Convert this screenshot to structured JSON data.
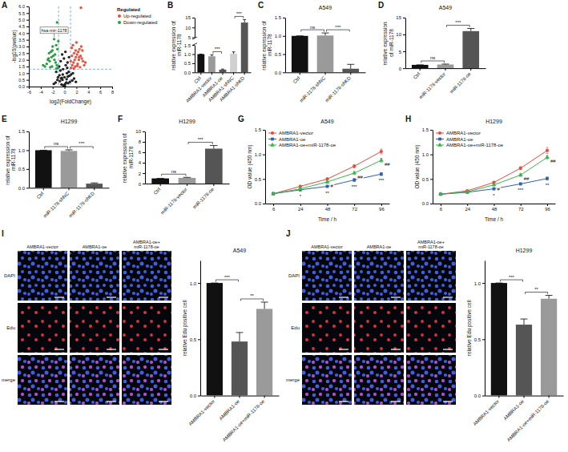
{
  "chart_data": [
    {
      "panel": "A",
      "type": "scatter",
      "xlabel": "log2(FoldChange)",
      "ylabel": "-log10(pvalue)",
      "xlim": [
        -6,
        8
      ],
      "xticks": [
        -6,
        -4,
        -2,
        0,
        2,
        4,
        6,
        8
      ],
      "ylim": [
        0,
        6
      ],
      "yticks": [
        {
          "value": 0,
          "label": "0.0"
        },
        {
          "value": 0.5,
          "label": "0.5"
        },
        {
          "value": 1,
          "label": "1.0"
        },
        {
          "value": 1.5,
          "label": "1.5"
        },
        {
          "value": 2,
          "label": "2.0"
        },
        {
          "value": 2.5,
          "label": "2.5"
        },
        {
          "value": 3,
          "label": "3.0"
        },
        {
          "value": 3.5,
          "label": "3.5"
        },
        {
          "value": 4,
          "label": "4.0"
        },
        {
          "value": 4.5,
          "label": "4.5"
        },
        {
          "value": 5,
          "label": "5.0"
        },
        {
          "value": 5.5,
          "label": "5.5"
        },
        {
          "value": 6,
          "label": "6.0"
        }
      ],
      "marker": "circle",
      "legend": "right",
      "legend_title": "Regulated",
      "thresholds": {
        "x": [
          -1,
          1
        ],
        "y": 1.3
      },
      "annotations": [
        {
          "text": "hsa-mir-1178",
          "x": -1.75,
          "y": 3.55
        }
      ],
      "series": [
        {
          "name": null,
          "color": "#222222",
          "x": [
            -0.2,
            0.1,
            0.3,
            -0.5,
            0.6,
            -0.8,
            0.9,
            -1.2,
            1.3,
            -1.5,
            1.6,
            -1.8,
            1.9,
            0.0,
            -0.3,
            0.4,
            -0.7,
            0.8,
            -0.9,
            0.5,
            -0.1,
            0.2,
            -0.4,
            0.7,
            -0.6,
            1.1,
            -1.1,
            1.4,
            -1.4,
            0.15,
            -0.25,
            0.35,
            -0.45,
            0.55,
            -0.65,
            0.05,
            0.45,
            -0.85,
            0.75,
            -0.35
          ],
          "values": [
            0.1,
            0.2,
            0.3,
            0.15,
            0.25,
            0.4,
            0.35,
            0.5,
            0.45,
            0.3,
            0.6,
            0.2,
            0.35,
            0.7,
            0.9,
            1.0,
            1.2,
            0.8,
            1.5,
            1.8,
            2.1,
            1.6,
            2.4,
            1.1,
            0.6,
            0.9,
            0.7,
            1.0,
            1.1,
            2.6,
            1.3,
            0.55,
            0.65,
            0.75,
            1.9,
            0.05,
            1.4,
            0.85,
            2.2,
            0.5
          ]
        },
        {
          "name": "Up-regulated",
          "color": "#e8543f",
          "x": [
            1.1,
            1.3,
            1.5,
            1.7,
            1.9,
            2.1,
            2.3,
            2.5,
            2.7,
            2.9,
            3.1,
            3.3,
            1.2,
            1.4,
            1.6,
            1.8,
            2.0,
            2.2,
            2.4,
            2.6,
            2.8,
            3.0,
            1.05,
            1.25,
            1.55,
            1.85,
            2.15,
            2.45,
            3.5,
            2.75
          ],
          "values": [
            1.4,
            1.6,
            1.8,
            2.0,
            2.2,
            2.4,
            2.6,
            2.8,
            2.3,
            2.1,
            1.9,
            1.6,
            2.9,
            3.1,
            2.5,
            1.5,
            3.3,
            1.7,
            2.0,
            1.45,
            3.0,
            2.7,
            1.9,
            2.3,
            1.35,
            2.7,
            1.55,
            2.2,
            1.8,
            5.9
          ]
        },
        {
          "name": "Down-regulated",
          "color": "#2e9e44",
          "x": [
            -1.1,
            -1.3,
            -1.5,
            -1.7,
            -1.9,
            -2.1,
            -2.3,
            -2.5,
            -2.7,
            -3.0,
            -3.3,
            -1.2,
            -1.4,
            -1.6,
            -1.75,
            -2.0,
            -2.2,
            -2.4,
            -2.6,
            -1.05,
            -1.25,
            -2.8,
            -3.6,
            -1.35,
            -2.05
          ],
          "values": [
            1.4,
            1.6,
            1.8,
            2.0,
            2.3,
            1.5,
            2.6,
            1.9,
            2.1,
            1.7,
            1.5,
            2.8,
            3.1,
            2.4,
            3.55,
            3.0,
            2.2,
            1.45,
            2.5,
            3.4,
            4.8,
            2.0,
            1.6,
            1.35,
            2.7
          ]
        }
      ]
    },
    {
      "panel": "B",
      "type": "bar",
      "ylabel": "relative expression of miR-1178",
      "categories": [
        "Ctrl",
        "AMBRA1-vector",
        "AMBRA1-oe",
        "AMBRA1-shNC",
        "AMBRA1-shKD"
      ],
      "values": [
        1,
        0.88,
        0.15,
        1.02,
        12.5
      ],
      "errors": [
        0,
        0.08,
        0.03,
        0.1,
        1.5
      ],
      "colors": [
        "#111111",
        "#9a9a9a",
        "#555555",
        "#d0d0d0",
        "#555555"
      ],
      "ylim": [
        0,
        15
      ],
      "ybreak": [
        1.5,
        5
      ],
      "yticks": [
        {
          "value": 0,
          "label": "0.0"
        },
        {
          "value": 0.5,
          "label": "0.5"
        },
        {
          "value": 1,
          "label": "1.0"
        },
        {
          "value": 1.5,
          "label": "1.5"
        },
        5,
        10,
        15
      ],
      "comparisons": [
        {
          "pair": [
            "AMBRA1-vector",
            "AMBRA1-oe"
          ],
          "label": "***"
        },
        {
          "pair": [
            "AMBRA1-shNC",
            "AMBRA1-shKD"
          ],
          "label": "***"
        }
      ]
    },
    {
      "panel": "C",
      "type": "bar",
      "title": "A549",
      "ylabel": "relative expression of miR-1178",
      "categories": [
        "Ctrl",
        "miR-1178-shNC",
        "miR-1178-shKD"
      ],
      "values": [
        1,
        1.01,
        0.1
      ],
      "errors": [
        0,
        0.07,
        0.12
      ],
      "colors": [
        "#111111",
        "#9a9a9a",
        "#555555"
      ],
      "ylim": [
        0,
        1.5
      ],
      "yticks": [
        {
          "value": 0,
          "label": "0.0"
        },
        {
          "value": 0.5,
          "label": "0.5"
        },
        {
          "value": 1,
          "label": "1.0"
        },
        {
          "value": 1.5,
          "label": "1.5"
        }
      ],
      "comparisons": [
        {
          "pair": [
            "Ctrl",
            "miR-1178-shNC"
          ],
          "label": "ns"
        },
        {
          "pair": [
            "miR-1178-shNC",
            "miR-1178-shKD"
          ],
          "label": "***"
        }
      ]
    },
    {
      "panel": "D",
      "type": "bar",
      "title": "A549",
      "ylabel": "relative expression of miR-1178",
      "categories": [
        "Ctrl",
        "miR-1178-vector",
        "miR-1178-oe"
      ],
      "values": [
        1,
        1.1,
        11
      ],
      "errors": [
        0,
        0.12,
        0.8
      ],
      "colors": [
        "#111111",
        "#9a9a9a",
        "#555555"
      ],
      "ylim": [
        0,
        15
      ],
      "yticks": [
        0,
        5,
        10,
        15
      ],
      "comparisons": [
        {
          "pair": [
            "Ctrl",
            "miR-1178-vector"
          ],
          "label": "ns"
        },
        {
          "pair": [
            "miR-1178-vector",
            "miR-1178-oe"
          ],
          "label": "***"
        }
      ]
    },
    {
      "panel": "E",
      "type": "bar",
      "title": "H1299",
      "ylabel": "relative expression of miR-1178",
      "categories": [
        "Ctrl",
        "miR-1178-shNC",
        "miR-1178-shKD"
      ],
      "values": [
        1,
        0.98,
        0.11
      ],
      "errors": [
        0,
        0.03,
        0.02
      ],
      "colors": [
        "#111111",
        "#9a9a9a",
        "#555555"
      ],
      "ylim": [
        0,
        1.5
      ],
      "yticks": [
        {
          "value": 0,
          "label": "0.0"
        },
        {
          "value": 0.5,
          "label": "0.5"
        },
        {
          "value": 1,
          "label": "1.0"
        },
        {
          "value": 1.5,
          "label": "1.5"
        }
      ],
      "comparisons": [
        {
          "pair": [
            "Ctrl",
            "miR-1178-shNC"
          ],
          "label": "ns"
        },
        {
          "pair": [
            "miR-1178-shNC",
            "miR-1178-shKD"
          ],
          "label": "***"
        }
      ]
    },
    {
      "panel": "F",
      "type": "bar",
      "title": "H1299",
      "ylabel": "relative expression of miR-1178",
      "categories": [
        "Ctrl",
        "miR-1178-vector",
        "miR-1178-oe"
      ],
      "values": [
        1,
        1.1,
        6.7
      ],
      "errors": [
        0,
        0.1,
        0.6
      ],
      "colors": [
        "#111111",
        "#9a9a9a",
        "#555555"
      ],
      "ylim": [
        0,
        10
      ],
      "yticks": [
        0,
        2,
        4,
        6,
        8,
        10
      ],
      "comparisons": [
        {
          "pair": [
            "Ctrl",
            "miR-1178-vector"
          ],
          "label": "ns"
        },
        {
          "pair": [
            "miR-1178-vector",
            "miR-1178-oe"
          ],
          "label": "***"
        }
      ]
    },
    {
      "panel": "G",
      "type": "line",
      "title": "A549",
      "xlabel": "Time / h",
      "ylabel": "OD value (450 nm)",
      "categories": [
        "6",
        "24",
        "48",
        "72",
        "96"
      ],
      "ylim": [
        0,
        1.5
      ],
      "yticks": [
        {
          "value": 0,
          "label": "0.0"
        },
        {
          "value": 0.5,
          "label": "0.5"
        },
        {
          "value": 1,
          "label": "1.0"
        },
        {
          "value": 1.5,
          "label": "1.5"
        }
      ],
      "legend": "top-left",
      "series": [
        {
          "name": "AMBRA1-vector",
          "color": "#e84a3c",
          "marker": "circle",
          "values": [
            0.2,
            0.35,
            0.5,
            0.76,
            1.06
          ],
          "errors": [
            0.01,
            0.02,
            0.02,
            0.03,
            0.05
          ]
        },
        {
          "name": "AMBRA1-oe",
          "color": "#2f5fb3",
          "marker": "square",
          "values": [
            0.2,
            0.28,
            0.35,
            0.48,
            0.6
          ],
          "errors": [
            0.01,
            0.02,
            0.02,
            0.03,
            0.03
          ],
          "significance": [
            null,
            "*",
            "**",
            "***",
            "***"
          ]
        },
        {
          "name": "AMBRA1-oe+miR-1178-oe",
          "color": "#3cb44b",
          "marker": "triangle",
          "values": [
            0.2,
            0.3,
            0.44,
            0.62,
            0.88
          ],
          "errors": [
            0.01,
            0.02,
            0.02,
            0.03,
            0.04
          ],
          "significance": [
            null,
            null,
            "#",
            "##",
            "##"
          ]
        }
      ]
    },
    {
      "panel": "H",
      "type": "line",
      "title": "H1299",
      "xlabel": "Time / h",
      "ylabel": "OD value (450 nm)",
      "categories": [
        "6",
        "24",
        "48",
        "72",
        "96"
      ],
      "ylim": [
        0,
        1.5
      ],
      "yticks": [
        {
          "value": 0,
          "label": "0.0"
        },
        {
          "value": 0.5,
          "label": "0.5"
        },
        {
          "value": 1,
          "label": "1.0"
        },
        {
          "value": 1.5,
          "label": "1.5"
        }
      ],
      "legend": "top-left",
      "series": [
        {
          "name": "AMBRA1-vector",
          "color": "#e84a3c",
          "marker": "circle",
          "values": [
            0.19,
            0.26,
            0.43,
            0.72,
            1.08
          ],
          "errors": [
            0.01,
            0.01,
            0.02,
            0.03,
            0.06
          ]
        },
        {
          "name": "AMBRA1-oe",
          "color": "#2f5fb3",
          "marker": "square",
          "values": [
            0.19,
            0.23,
            0.3,
            0.4,
            0.51
          ],
          "errors": [
            0.01,
            0.01,
            0.02,
            0.02,
            0.03
          ],
          "significance": [
            null,
            null,
            "*",
            "***",
            "**"
          ]
        },
        {
          "name": "AMBRA1-oe+miR-1178-oe",
          "color": "#3cb44b",
          "marker": "triangle",
          "values": [
            0.19,
            0.24,
            0.38,
            0.58,
            0.94
          ],
          "errors": [
            0.01,
            0.01,
            0.02,
            0.03,
            0.04
          ],
          "significance": [
            null,
            null,
            "#",
            "##",
            "##"
          ]
        }
      ]
    },
    {
      "panel": "I",
      "type": "bar",
      "title": "A549",
      "ylabel": "relative Edu positive cell",
      "images": {
        "columns": [
          "AMBRA1-vector",
          "AMBRA1-oe",
          "AMBRA1-oe+miR-1178-oe"
        ],
        "rows": [
          "DAPI",
          "Edu",
          "merge"
        ]
      },
      "categories": [
        "AMBRA1-vector",
        "AMBRA1-oe",
        "AMBRA1-oe+miR-1178-oe"
      ],
      "values": [
        1,
        0.48,
        0.77
      ],
      "errors": [
        0,
        0.08,
        0.06
      ],
      "colors": [
        "#111111",
        "#555555",
        "#9a9a9a"
      ],
      "ylim": [
        0,
        1.2
      ],
      "yticks": [
        {
          "value": 0,
          "label": "0.0"
        },
        {
          "value": 0.5,
          "label": "0.5"
        },
        {
          "value": 1,
          "label": "1.0"
        }
      ],
      "comparisons": [
        {
          "pair": [
            "AMBRA1-vector",
            "AMBRA1-oe"
          ],
          "label": "***"
        },
        {
          "pair": [
            "AMBRA1-oe",
            "AMBRA1-oe+miR-1178-oe"
          ],
          "label": "**"
        }
      ]
    },
    {
      "panel": "J",
      "type": "bar",
      "title": "H1299",
      "ylabel": "relative Edu positive cell",
      "images": {
        "columns": [
          "AMBRA1-vector",
          "AMBRA1-oe",
          "AMBRA1-oe+miR-1178-oe"
        ],
        "rows": [
          "DAPI",
          "Edu",
          "merge"
        ]
      },
      "categories": [
        "AMBRA1-vector",
        "AMBRA1-oe",
        "AMBRA1-oe+miR-1178-oe"
      ],
      "values": [
        1,
        0.63,
        0.86
      ],
      "errors": [
        0,
        0.05,
        0.03
      ],
      "colors": [
        "#111111",
        "#555555",
        "#9a9a9a"
      ],
      "ylim": [
        0,
        1.2
      ],
      "yticks": [
        {
          "value": 0,
          "label": "0.0"
        },
        {
          "value": 0.5,
          "label": "0.5"
        },
        {
          "value": 1,
          "label": "1.0"
        }
      ],
      "comparisons": [
        {
          "pair": [
            "AMBRA1-vector",
            "AMBRA1-oe"
          ],
          "label": "***"
        },
        {
          "pair": [
            "AMBRA1-oe",
            "AMBRA1-oe+miR-1178-oe"
          ],
          "label": "**"
        }
      ]
    }
  ]
}
